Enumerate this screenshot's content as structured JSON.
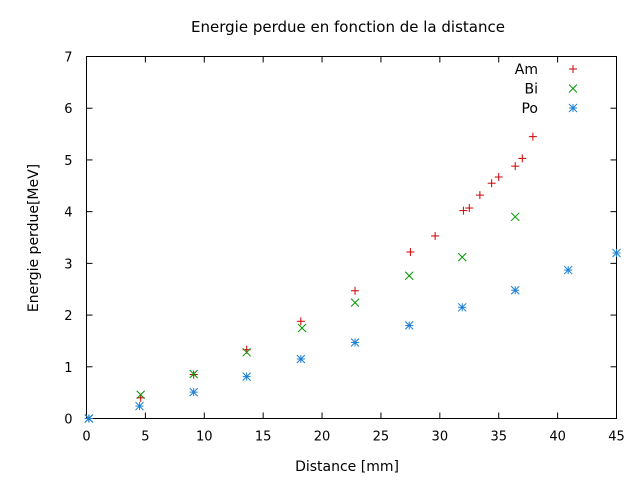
{
  "chart_data": {
    "type": "scatter",
    "title": "Energie perdue en fonction de la distance",
    "xlabel": "Distance [mm]",
    "ylabel": "Energie perdue[MeV]",
    "xlim": [
      0,
      45
    ],
    "ylim": [
      0,
      7
    ],
    "xticks": [
      0,
      5,
      10,
      15,
      20,
      25,
      30,
      35,
      40,
      45
    ],
    "yticks": [
      0,
      1,
      2,
      3,
      4,
      5,
      6,
      7
    ],
    "grid": false,
    "legend": "top-right",
    "series": [
      {
        "name": "Am",
        "marker": "plus",
        "color": "#cc0000",
        "points": [
          [
            0.2,
            0.0
          ],
          [
            4.6,
            0.4
          ],
          [
            9.1,
            0.85
          ],
          [
            13.6,
            1.33
          ],
          [
            18.2,
            1.88
          ],
          [
            22.8,
            2.47
          ],
          [
            27.5,
            3.22
          ],
          [
            29.6,
            3.53
          ],
          [
            32.0,
            4.02
          ],
          [
            32.5,
            4.07
          ],
          [
            33.4,
            4.32
          ],
          [
            34.4,
            4.55
          ],
          [
            35.0,
            4.67
          ],
          [
            36.4,
            4.88
          ],
          [
            37.0,
            5.03
          ],
          [
            37.9,
            5.45
          ]
        ]
      },
      {
        "name": "Bi",
        "marker": "cross",
        "color": "#009900",
        "points": [
          [
            0.2,
            0.0
          ],
          [
            4.6,
            0.46
          ],
          [
            9.1,
            0.86
          ],
          [
            13.6,
            1.28
          ],
          [
            18.3,
            1.75
          ],
          [
            22.8,
            2.24
          ],
          [
            27.4,
            2.76
          ],
          [
            31.9,
            3.12
          ],
          [
            36.4,
            3.9
          ]
        ]
      },
      {
        "name": "Po",
        "marker": "star",
        "color": "#1a7fd6",
        "points": [
          [
            0.2,
            0.0
          ],
          [
            4.5,
            0.24
          ],
          [
            9.1,
            0.51
          ],
          [
            13.6,
            0.81
          ],
          [
            18.2,
            1.15
          ],
          [
            22.8,
            1.47
          ],
          [
            27.4,
            1.8
          ],
          [
            31.9,
            2.15
          ],
          [
            36.4,
            2.48
          ],
          [
            40.9,
            2.87
          ],
          [
            45.0,
            3.2
          ]
        ]
      }
    ]
  }
}
